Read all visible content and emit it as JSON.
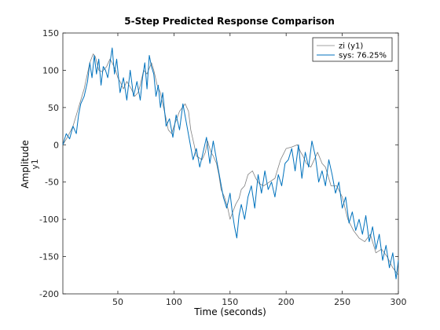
{
  "chart_data": {
    "type": "line",
    "title": "5-Step Predicted Response Comparison",
    "xlabel": "Time (seconds)",
    "ylabel": "Amplitude",
    "ylabel_sub": "y1",
    "xlim": [
      1,
      300
    ],
    "ylim": [
      -200,
      150
    ],
    "xticks": [
      50,
      100,
      150,
      200,
      250,
      300
    ],
    "yticks": [
      150,
      100,
      50,
      0,
      -50,
      -100,
      -150,
      -200
    ],
    "grid": false,
    "legend_position": "top-right",
    "colors": {
      "measured": "#808080",
      "predicted": "#0072BD"
    },
    "series": [
      {
        "name": "zi (y1)",
        "x": [
          1,
          5,
          10,
          15,
          20,
          25,
          28,
          30,
          33,
          36,
          40,
          43,
          45,
          48,
          50,
          52,
          55,
          58,
          62,
          65,
          68,
          70,
          73,
          76,
          80,
          82,
          85,
          88,
          90,
          93,
          95,
          98,
          100,
          105,
          110,
          113,
          115,
          118,
          120,
          125,
          128,
          130,
          133,
          135,
          138,
          140,
          142,
          145,
          148,
          150,
          152,
          155,
          158,
          160,
          163,
          166,
          170,
          173,
          176,
          180,
          185,
          190,
          195,
          200,
          205,
          210,
          213,
          215,
          218,
          222,
          225,
          228,
          232,
          235,
          238,
          240,
          245,
          250,
          255,
          260,
          265,
          270,
          275,
          280,
          285,
          290,
          295,
          300
        ],
        "y": [
          0,
          10,
          25,
          50,
          75,
          110,
          122,
          118,
          100,
          98,
          105,
          115,
          110,
          100,
          90,
          85,
          75,
          85,
          75,
          65,
          70,
          80,
          100,
          95,
          110,
          100,
          80,
          70,
          55,
          35,
          20,
          15,
          25,
          45,
          55,
          45,
          20,
          0,
          -15,
          -20,
          -10,
          5,
          -10,
          -15,
          -25,
          -40,
          -60,
          -70,
          -85,
          -100,
          -92,
          -80,
          -72,
          -60,
          -55,
          -40,
          -35,
          -45,
          -52,
          -55,
          -50,
          -45,
          -20,
          -5,
          -3,
          0,
          -10,
          -15,
          -25,
          -30,
          -20,
          -10,
          -25,
          -30,
          -45,
          -55,
          -55,
          -70,
          -100,
          -115,
          -125,
          -130,
          -120,
          -145,
          -140,
          -150,
          -165,
          -175
        ]
      },
      {
        "name": "sys: 76.25%",
        "x": [
          1,
          4,
          7,
          10,
          13,
          15,
          17,
          20,
          23,
          25,
          27,
          29,
          31,
          33,
          35,
          37,
          39,
          41,
          43,
          45,
          47,
          49,
          52,
          55,
          58,
          61,
          64,
          67,
          70,
          72,
          74,
          76,
          78,
          80,
          82,
          84,
          86,
          88,
          90,
          93,
          96,
          99,
          102,
          105,
          108,
          111,
          114,
          117,
          120,
          123,
          126,
          129,
          132,
          135,
          138,
          141,
          144,
          147,
          150,
          152,
          154,
          156,
          158,
          160,
          163,
          166,
          169,
          172,
          175,
          178,
          181,
          184,
          187,
          190,
          193,
          196,
          199,
          202,
          205,
          208,
          211,
          214,
          217,
          220,
          223,
          226,
          229,
          232,
          235,
          238,
          241,
          244,
          247,
          250,
          253,
          256,
          259,
          262,
          265,
          268,
          271,
          274,
          277,
          280,
          283,
          286,
          289,
          292,
          295,
          298,
          300
        ],
        "y": [
          0,
          15,
          8,
          25,
          15,
          40,
          55,
          65,
          85,
          110,
          90,
          120,
          95,
          115,
          80,
          105,
          100,
          90,
          110,
          130,
          95,
          115,
          70,
          90,
          60,
          100,
          65,
          85,
          60,
          90,
          110,
          75,
          120,
          105,
          95,
          65,
          80,
          50,
          70,
          25,
          35,
          10,
          40,
          20,
          55,
          30,
          5,
          -20,
          -5,
          -30,
          -10,
          10,
          -25,
          5,
          -20,
          -45,
          -70,
          -85,
          -65,
          -90,
          -110,
          -125,
          -95,
          -80,
          -100,
          -70,
          -55,
          -85,
          -40,
          -65,
          -35,
          -60,
          -50,
          -70,
          -40,
          -55,
          -25,
          -20,
          -5,
          -35,
          0,
          -45,
          -10,
          -30,
          5,
          -15,
          -50,
          -35,
          -55,
          -20,
          -40,
          -65,
          -50,
          -85,
          -70,
          -105,
          -90,
          -115,
          -100,
          -120,
          -95,
          -130,
          -110,
          -140,
          -120,
          -155,
          -135,
          -165,
          -145,
          -180,
          -155
        ]
      }
    ]
  }
}
